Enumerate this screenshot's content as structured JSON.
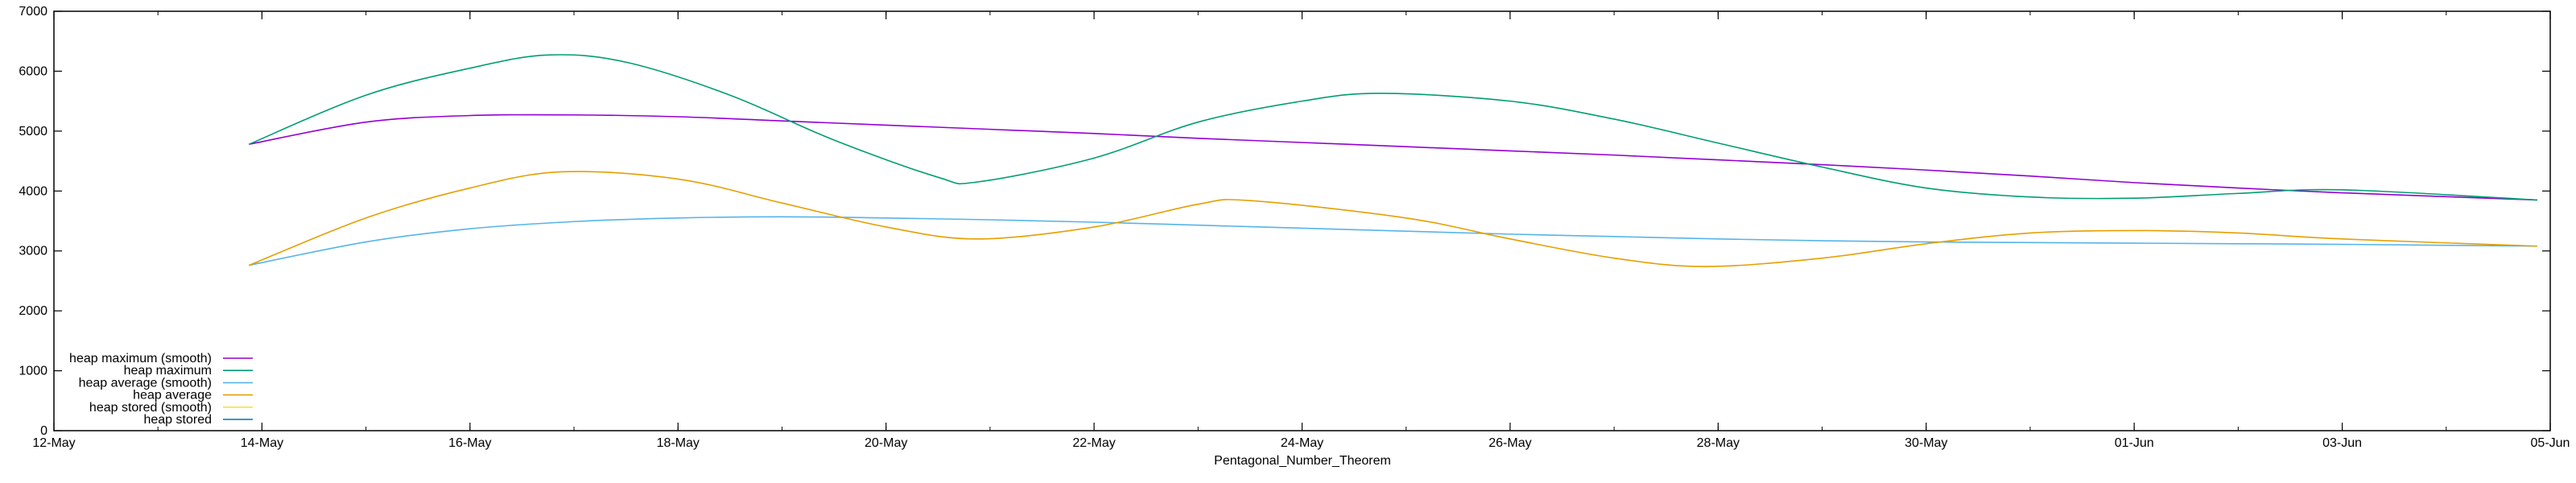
{
  "chart_data": {
    "type": "line",
    "title": "",
    "xlabel": "Pentagonal_Number_Theorem",
    "ylabel": "",
    "ylim": [
      0,
      7000
    ],
    "yticks": [
      0,
      1000,
      2000,
      3000,
      4000,
      5000,
      6000,
      7000
    ],
    "xlim": [
      "2024-05-12",
      "2024-06-05"
    ],
    "xticks": [
      {
        "date": "2024-05-12",
        "label": "12-May"
      },
      {
        "date": "2024-05-14",
        "label": "14-May"
      },
      {
        "date": "2024-05-16",
        "label": "16-May"
      },
      {
        "date": "2024-05-18",
        "label": "18-May"
      },
      {
        "date": "2024-05-20",
        "label": "20-May"
      },
      {
        "date": "2024-05-22",
        "label": "22-May"
      },
      {
        "date": "2024-05-24",
        "label": "24-May"
      },
      {
        "date": "2024-05-26",
        "label": "26-May"
      },
      {
        "date": "2024-05-28",
        "label": "28-May"
      },
      {
        "date": "2024-05-30",
        "label": "30-May"
      },
      {
        "date": "2024-06-01",
        "label": "01-Jun"
      },
      {
        "date": "2024-06-03",
        "label": "03-Jun"
      },
      {
        "date": "2024-06-05",
        "label": "05-Jun"
      }
    ],
    "grid": false,
    "legend_position": "bottom-left",
    "series": [
      {
        "name": "heap maximum (smooth)",
        "color": "#9400d3",
        "points": [
          [
            "2024-05-13T21:00",
            4780
          ],
          [
            "2024-05-15T00:00",
            5150
          ],
          [
            "2024-05-16T00:00",
            5260
          ],
          [
            "2024-05-17T00:00",
            5270
          ],
          [
            "2024-05-18T00:00",
            5240
          ],
          [
            "2024-05-19T00:00",
            5170
          ],
          [
            "2024-05-20T00:00",
            5100
          ],
          [
            "2024-05-21T00:00",
            5030
          ],
          [
            "2024-05-22T00:00",
            4960
          ],
          [
            "2024-05-23T00:00",
            4880
          ],
          [
            "2024-05-24T00:00",
            4810
          ],
          [
            "2024-05-25T00:00",
            4740
          ],
          [
            "2024-05-26T00:00",
            4670
          ],
          [
            "2024-05-27T00:00",
            4600
          ],
          [
            "2024-05-28T00:00",
            4520
          ],
          [
            "2024-05-29T00:00",
            4440
          ],
          [
            "2024-05-30T00:00",
            4350
          ],
          [
            "2024-05-31T00:00",
            4250
          ],
          [
            "2024-06-01T00:00",
            4140
          ],
          [
            "2024-06-02T00:00",
            4050
          ],
          [
            "2024-06-03T00:00",
            3970
          ],
          [
            "2024-06-04T21:00",
            3850
          ]
        ]
      },
      {
        "name": "heap maximum",
        "color": "#009e73",
        "points": [
          [
            "2024-05-13T21:00",
            4780
          ],
          [
            "2024-05-15T00:00",
            5600
          ],
          [
            "2024-05-16T00:00",
            6050
          ],
          [
            "2024-05-16T18:00",
            6270
          ],
          [
            "2024-05-17T12:00",
            6150
          ],
          [
            "2024-05-18T12:00",
            5600
          ],
          [
            "2024-05-19T12:00",
            4850
          ],
          [
            "2024-05-20T12:00",
            4230
          ],
          [
            "2024-05-20T21:00",
            4150
          ],
          [
            "2024-05-22T00:00",
            4550
          ],
          [
            "2024-05-23T00:00",
            5150
          ],
          [
            "2024-05-24T00:00",
            5500
          ],
          [
            "2024-05-24T18:00",
            5630
          ],
          [
            "2024-05-26T00:00",
            5500
          ],
          [
            "2024-05-27T00:00",
            5200
          ],
          [
            "2024-05-28T00:00",
            4800
          ],
          [
            "2024-05-29T00:00",
            4400
          ],
          [
            "2024-05-30T00:00",
            4050
          ],
          [
            "2024-05-31T00:00",
            3900
          ],
          [
            "2024-06-01T00:00",
            3880
          ],
          [
            "2024-06-02T00:00",
            3960
          ],
          [
            "2024-06-03T00:00",
            4020
          ],
          [
            "2024-06-04T21:00",
            3850
          ]
        ]
      },
      {
        "name": "heap average (smooth)",
        "color": "#56b4e9",
        "points": [
          [
            "2024-05-13T21:00",
            2760
          ],
          [
            "2024-05-15T00:00",
            3150
          ],
          [
            "2024-05-16T00:00",
            3370
          ],
          [
            "2024-05-17T00:00",
            3490
          ],
          [
            "2024-05-18T00:00",
            3550
          ],
          [
            "2024-05-19T00:00",
            3570
          ],
          [
            "2024-05-20T00:00",
            3550
          ],
          [
            "2024-05-21T00:00",
            3520
          ],
          [
            "2024-05-22T00:00",
            3480
          ],
          [
            "2024-05-23T00:00",
            3430
          ],
          [
            "2024-05-24T00:00",
            3380
          ],
          [
            "2024-05-25T00:00",
            3330
          ],
          [
            "2024-05-26T00:00",
            3280
          ],
          [
            "2024-05-27T00:00",
            3240
          ],
          [
            "2024-05-28T00:00",
            3200
          ],
          [
            "2024-05-29T00:00",
            3170
          ],
          [
            "2024-05-30T00:00",
            3150
          ],
          [
            "2024-05-31T00:00",
            3140
          ],
          [
            "2024-06-01T00:00",
            3130
          ],
          [
            "2024-06-02T00:00",
            3120
          ],
          [
            "2024-06-03T00:00",
            3110
          ],
          [
            "2024-06-04T21:00",
            3080
          ]
        ]
      },
      {
        "name": "heap average",
        "color": "#e69f00",
        "points": [
          [
            "2024-05-13T21:00",
            2760
          ],
          [
            "2024-05-15T00:00",
            3550
          ],
          [
            "2024-05-16T00:00",
            4050
          ],
          [
            "2024-05-16T21:00",
            4320
          ],
          [
            "2024-05-18T00:00",
            4200
          ],
          [
            "2024-05-19T00:00",
            3800
          ],
          [
            "2024-05-20T00:00",
            3400
          ],
          [
            "2024-05-20T21:00",
            3200
          ],
          [
            "2024-05-22T00:00",
            3400
          ],
          [
            "2024-05-23T00:00",
            3780
          ],
          [
            "2024-05-23T12:00",
            3840
          ],
          [
            "2024-05-25T00:00",
            3550
          ],
          [
            "2024-05-26T00:00",
            3200
          ],
          [
            "2024-05-27T00:00",
            2880
          ],
          [
            "2024-05-27T21:00",
            2740
          ],
          [
            "2024-05-29T00:00",
            2880
          ],
          [
            "2024-05-30T00:00",
            3120
          ],
          [
            "2024-05-31T00:00",
            3300
          ],
          [
            "2024-06-01T00:00",
            3340
          ],
          [
            "2024-06-02T00:00",
            3300
          ],
          [
            "2024-06-03T00:00",
            3200
          ],
          [
            "2024-06-04T21:00",
            3080
          ]
        ]
      },
      {
        "name": "heap stored (smooth)",
        "color": "#f0e442",
        "points": []
      },
      {
        "name": "heap stored",
        "color": "#0072b2",
        "points": []
      }
    ]
  }
}
